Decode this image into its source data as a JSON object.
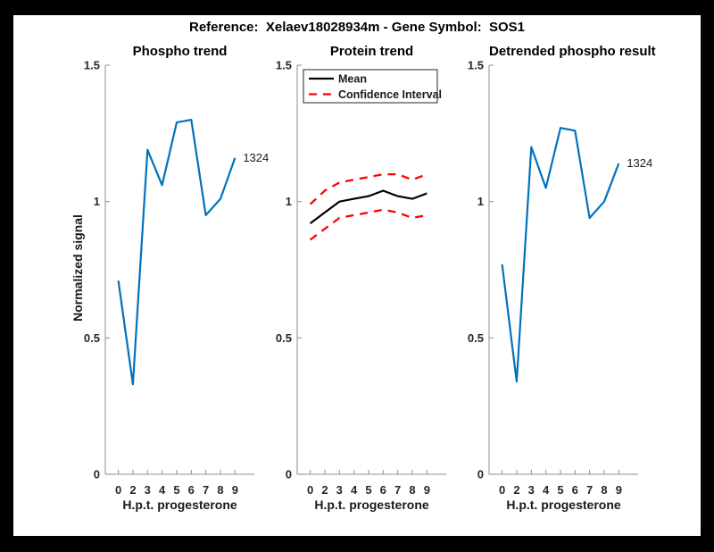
{
  "figure": {
    "title": "Reference:  Xelaev18028934m - Gene Symbol:  SOS1",
    "ylabel": "Normalized signal"
  },
  "colors": {
    "blue": "#0072BD",
    "red": "#FF0000",
    "black": "#000000",
    "axis": "#8C8C8C",
    "label": "#262626",
    "frame": "#000000",
    "background": "#FFFFFF"
  },
  "chart_data": [
    {
      "type": "line",
      "title": "Phospho trend",
      "xlabel": "H.p.t. progesterone",
      "ylabel": "Normalized signal",
      "categories": [
        "0",
        "2",
        "3",
        "4",
        "5",
        "6",
        "7",
        "8",
        "9"
      ],
      "ylim": [
        0,
        1.5
      ],
      "yticks": [
        0,
        0.5,
        1,
        1.5
      ],
      "ytick_labels": [
        "0",
        "0.5",
        "1",
        "1.5"
      ],
      "grid": false,
      "legend_position": "none",
      "series": [
        {
          "name": "phospho-signal",
          "color": "#0072BD",
          "dash": "solid",
          "width": 2.2,
          "values": [
            0.71,
            0.33,
            1.19,
            1.06,
            1.29,
            1.3,
            0.95,
            1.01,
            1.16
          ]
        }
      ],
      "annotation": "1324"
    },
    {
      "type": "line",
      "title": "Protein trend",
      "xlabel": "H.p.t. progesterone",
      "categories": [
        "0",
        "2",
        "3",
        "4",
        "5",
        "6",
        "7",
        "8",
        "9"
      ],
      "ylim": [
        0,
        1.5
      ],
      "yticks": [
        0,
        0.5,
        1,
        1.5
      ],
      "ytick_labels": [
        "0",
        "0.5",
        "1",
        "1.5"
      ],
      "grid": false,
      "legend_position": "top-left",
      "legend": [
        {
          "label": "Mean",
          "color": "#000000",
          "dash": "solid"
        },
        {
          "label": "Confidence Interval",
          "color": "#FF0000",
          "dash": "dashed"
        }
      ],
      "series": [
        {
          "name": "mean",
          "color": "#000000",
          "dash": "solid",
          "width": 2.2,
          "values": [
            0.92,
            0.96,
            1.0,
            1.01,
            1.02,
            1.04,
            1.02,
            1.01,
            1.03
          ]
        },
        {
          "name": "ci-upper",
          "color": "#FF0000",
          "dash": "dashed",
          "width": 2.3,
          "values": [
            0.99,
            1.04,
            1.07,
            1.08,
            1.09,
            1.1,
            1.1,
            1.08,
            1.1
          ]
        },
        {
          "name": "ci-lower",
          "color": "#FF0000",
          "dash": "dashed",
          "width": 2.3,
          "values": [
            0.86,
            0.9,
            0.94,
            0.95,
            0.96,
            0.97,
            0.96,
            0.94,
            0.95
          ]
        }
      ]
    },
    {
      "type": "line",
      "title": "Detrended phospho result",
      "xlabel": "H.p.t. progesterone",
      "categories": [
        "0",
        "2",
        "3",
        "4",
        "5",
        "6",
        "7",
        "8",
        "9"
      ],
      "ylim": [
        0,
        1.5
      ],
      "yticks": [
        0,
        0.5,
        1,
        1.5
      ],
      "ytick_labels": [
        "0",
        "0.5",
        "1",
        "1.5"
      ],
      "grid": false,
      "legend_position": "none",
      "series": [
        {
          "name": "detrended-phospho-signal",
          "color": "#0072BD",
          "dash": "solid",
          "width": 2.2,
          "values": [
            0.77,
            0.34,
            1.2,
            1.05,
            1.27,
            1.26,
            0.94,
            1.0,
            1.14
          ]
        }
      ],
      "annotation": "1324"
    }
  ]
}
